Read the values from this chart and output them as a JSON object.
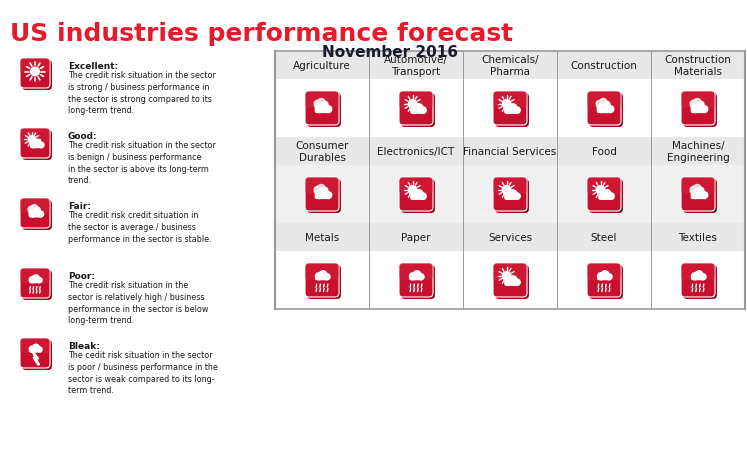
{
  "title": "US industries performance forecast",
  "subtitle": "November 2016",
  "title_color": "#e8192c",
  "subtitle_color": "#1a1a2e",
  "bg_color": "#ffffff",
  "legend_bg": "#f0f0f0",
  "icon_bg_red": "#c8102e",
  "icon_shadow": "#a00820",
  "grid_line_color": "#999999",
  "header_bg": "#e8e8e8",
  "row_bg_alt": "#f0f0f0",
  "cell_bg_white": "#ffffff",
  "legend_items": [
    {
      "label": "Excellent:",
      "desc": "The credit risk situation in the sector\nis strong / business performance in\nthe sector is strong compared to its\nlong-term trend.",
      "type": "sun"
    },
    {
      "label": "Good:",
      "desc": "The credit risk situation in the sector\nis benign / business performance\nin the sector is above its long-term\ntrend.",
      "type": "sun_cloud"
    },
    {
      "label": "Fair:",
      "desc": "The credit risk credit situation in\nthe sector is average / business\nperformance in the sector is stable.",
      "type": "cloud"
    },
    {
      "label": "Poor:",
      "desc": "The credit risk situation in the\nsector is relatively high / business\nperformance in the sector is below\nlong-term trend.",
      "type": "rain"
    },
    {
      "label": "Bleak:",
      "desc": "The cedit risk situation in the sector\nis poor / business performance in the\nsector is weak compared to its long-\nterm trend.",
      "type": "storm"
    }
  ],
  "columns": [
    "Agriculture",
    "Automotive/\nTransport",
    "Chemicals/\nPharma",
    "Construction",
    "Construction\nMaterials"
  ],
  "columns2": [
    "Consumer\nDurables",
    "Electronics/ICT",
    "Financial Services",
    "Food",
    "Machines/\nEngineering"
  ],
  "columns3": [
    "Metals",
    "Paper",
    "Services",
    "Steel",
    "Textiles"
  ],
  "grid_data": [
    [
      "fair",
      "good",
      "good",
      "fair",
      "fair"
    ],
    [
      "fair",
      "good",
      "good",
      "good",
      "fair"
    ],
    [
      "poor",
      "poor",
      "good",
      "poor",
      "poor"
    ]
  ]
}
